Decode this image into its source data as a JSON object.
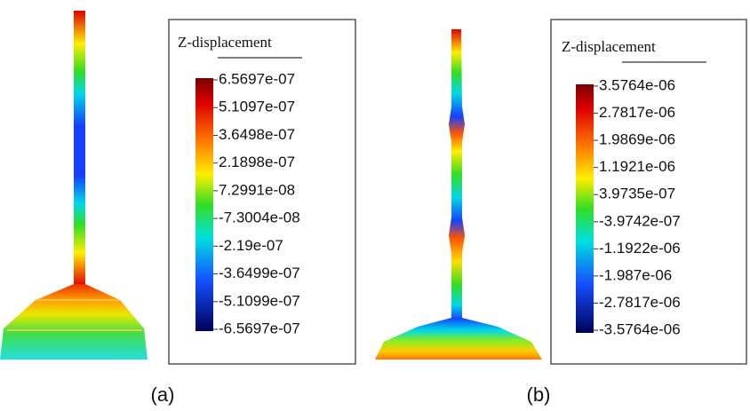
{
  "panels": [
    {
      "legend_title": "Z-displacement",
      "labels": [
        "6.5697e-07",
        "5.1097e-07",
        "3.6498e-07",
        "2.1898e-07",
        "7.2991e-08",
        "-7.3004e-08",
        "-2.19e-07",
        "-3.6499e-07",
        "-5.1099e-07",
        "-6.5697e-07"
      ],
      "caption": "(a)"
    },
    {
      "legend_title": "Z-displacement",
      "labels": [
        "3.5764e-06",
        "2.7817e-06",
        "1.9869e-06",
        "1.1921e-06",
        "3.9735e-07",
        "-3.9742e-07",
        "-1.1922e-06",
        "-1.987e-06",
        "-2.7817e-06",
        "-3.5764e-06"
      ],
      "caption": "(b)"
    }
  ]
}
